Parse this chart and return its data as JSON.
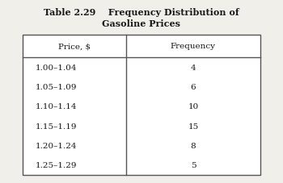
{
  "title_line1": "Table 2.29    Frequency Distribution of",
  "title_line2": "Gasoline Prices",
  "col1_header": "Price, $",
  "col2_header": "Frequency",
  "prices": [
    "1.00–1.04",
    "1.05–1.09",
    "1.10–1.14",
    "1.15–1.19",
    "1.20–1.24",
    "1.25–1.29"
  ],
  "frequencies": [
    "4",
    "6",
    "10",
    "15",
    "8",
    "5"
  ],
  "bg_color": "#f0efea",
  "table_bg": "#ffffff",
  "text_color": "#1a1a1a",
  "font_size_title": 8.0,
  "font_size_header": 7.5,
  "font_size_data": 7.5
}
